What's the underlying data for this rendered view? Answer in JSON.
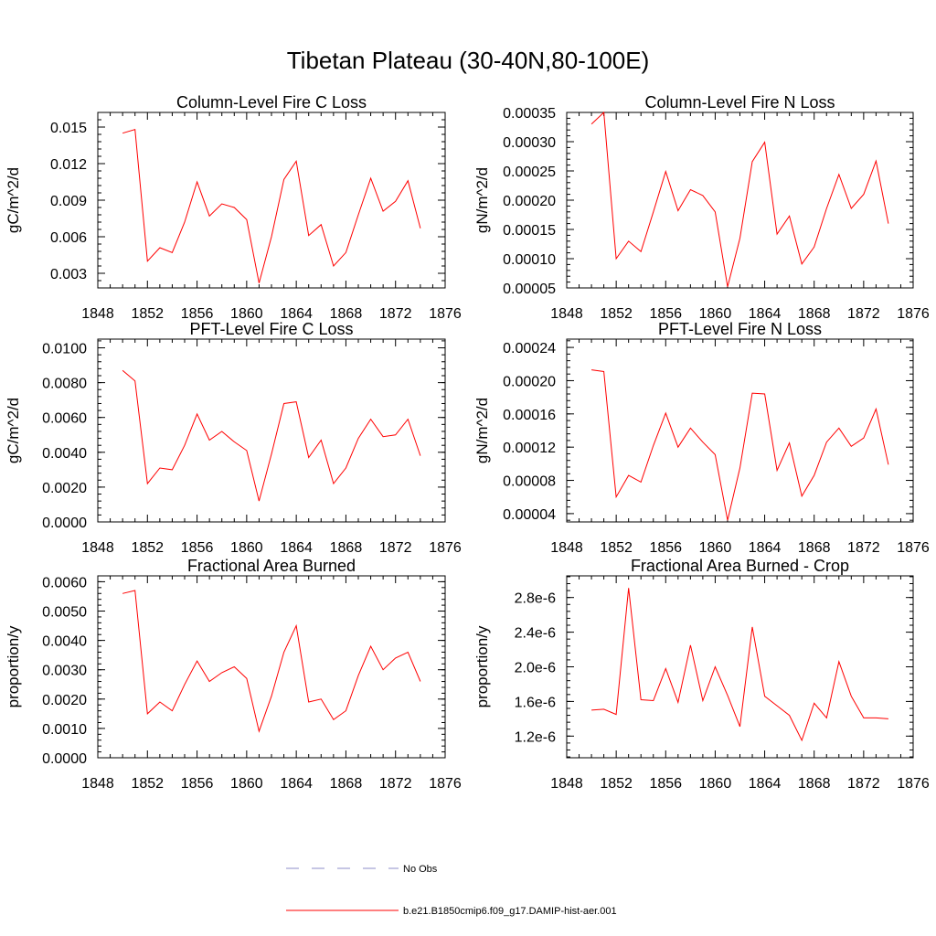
{
  "figure": {
    "title": "Tibetan Plateau (30-40N,80-100E)",
    "line_color": "#ff0000",
    "obs_color": "#8c8cc8"
  },
  "legend": {
    "obs_label": "No Obs",
    "model_label": "b.e21.B1850cmip6.f09_g17.DAMIP-hist-aer.001"
  },
  "chart_data": [
    {
      "type": "line",
      "title": "Column-Level Fire C Loss",
      "ylabel": "gC/m^2/d",
      "xlim": [
        1848,
        1876
      ],
      "xticks": [
        "1848",
        "1852",
        "1856",
        "1860",
        "1864",
        "1868",
        "1872",
        "1876"
      ],
      "ylim": [
        0.0018,
        0.0162
      ],
      "yticks": [
        "0.003",
        "0.006",
        "0.009",
        "0.012",
        "0.015"
      ],
      "x": [
        1850,
        1851,
        1852,
        1853,
        1854,
        1855,
        1856,
        1857,
        1858,
        1859,
        1860,
        1861,
        1862,
        1863,
        1864,
        1865,
        1866,
        1867,
        1868,
        1869,
        1870,
        1871,
        1872,
        1873,
        1874
      ],
      "series": [
        {
          "values": [
            0.0145,
            0.0148,
            0.004,
            0.0051,
            0.0047,
            0.0072,
            0.0105,
            0.0077,
            0.0087,
            0.0084,
            0.0074,
            0.0022,
            0.006,
            0.0107,
            0.0122,
            0.0061,
            0.007,
            0.0036,
            0.0047,
            0.0078,
            0.0108,
            0.0081,
            0.0089,
            0.0106,
            0.0067
          ]
        }
      ]
    },
    {
      "type": "line",
      "title": "Column-Level Fire N Loss",
      "ylabel": "gN/m^2/d",
      "xlim": [
        1848,
        1876
      ],
      "xticks": [
        "1848",
        "1852",
        "1856",
        "1860",
        "1864",
        "1868",
        "1872",
        "1876"
      ],
      "ylim": [
        5e-05,
        0.00035
      ],
      "yticks": [
        "0.00005",
        "0.00010",
        "0.00015",
        "0.00020",
        "0.00025",
        "0.00030",
        "0.00035"
      ],
      "x": [
        1850,
        1851,
        1852,
        1853,
        1854,
        1855,
        1856,
        1857,
        1858,
        1859,
        1860,
        1861,
        1862,
        1863,
        1864,
        1865,
        1866,
        1867,
        1868,
        1869,
        1870,
        1871,
        1872,
        1873,
        1874
      ],
      "series": [
        {
          "values": [
            0.00033,
            0.00035,
            0.0001,
            0.00013,
            0.000112,
            0.00018,
            0.000249,
            0.000182,
            0.000218,
            0.000208,
            0.00018,
            5.2e-05,
            0.000135,
            0.000266,
            0.000299,
            0.000142,
            0.000173,
            9.1e-05,
            0.00012,
            0.000186,
            0.000244,
            0.000186,
            0.00021,
            0.000267,
            0.00016
          ]
        }
      ]
    },
    {
      "type": "line",
      "title": "PFT-Level Fire C Loss",
      "ylabel": "gC/m^2/d",
      "xlim": [
        1848,
        1876
      ],
      "xticks": [
        "1848",
        "1852",
        "1856",
        "1860",
        "1864",
        "1868",
        "1872",
        "1876"
      ],
      "ylim": [
        0.0,
        0.0105
      ],
      "yticks": [
        "0.0000",
        "0.0020",
        "0.0040",
        "0.0060",
        "0.0080",
        "0.0100"
      ],
      "x": [
        1850,
        1851,
        1852,
        1853,
        1854,
        1855,
        1856,
        1857,
        1858,
        1859,
        1860,
        1861,
        1862,
        1863,
        1864,
        1865,
        1866,
        1867,
        1868,
        1869,
        1870,
        1871,
        1872,
        1873,
        1874
      ],
      "series": [
        {
          "values": [
            0.0087,
            0.0081,
            0.0022,
            0.0031,
            0.003,
            0.0044,
            0.0062,
            0.0047,
            0.0052,
            0.0046,
            0.0041,
            0.0012,
            0.0039,
            0.0068,
            0.0069,
            0.0037,
            0.0047,
            0.0022,
            0.0031,
            0.0048,
            0.0059,
            0.0049,
            0.005,
            0.0059,
            0.0038
          ]
        }
      ]
    },
    {
      "type": "line",
      "title": "PFT-Level Fire N Loss",
      "ylabel": "gN/m^2/d",
      "xlim": [
        1848,
        1876
      ],
      "xticks": [
        "1848",
        "1852",
        "1856",
        "1860",
        "1864",
        "1868",
        "1872",
        "1876"
      ],
      "ylim": [
        3e-05,
        0.00025
      ],
      "yticks": [
        "0.00004",
        "0.00008",
        "0.00012",
        "0.00016",
        "0.00020",
        "0.00024"
      ],
      "x": [
        1850,
        1851,
        1852,
        1853,
        1854,
        1855,
        1856,
        1857,
        1858,
        1859,
        1860,
        1861,
        1862,
        1863,
        1864,
        1865,
        1866,
        1867,
        1868,
        1869,
        1870,
        1871,
        1872,
        1873,
        1874
      ],
      "series": [
        {
          "values": [
            0.000213,
            0.000211,
            6e-05,
            8.6e-05,
            7.8e-05,
            0.000122,
            0.000161,
            0.00012,
            0.000143,
            0.000126,
            0.000111,
            3.2e-05,
            9.5e-05,
            0.000185,
            0.000184,
            9.2e-05,
            0.000125,
            6.1e-05,
            8.6e-05,
            0.000126,
            0.000143,
            0.000121,
            0.000131,
            0.000166,
            9.9e-05
          ]
        }
      ]
    },
    {
      "type": "line",
      "title": "Fractional Area Burned",
      "ylabel": "proportion/y",
      "xlim": [
        1848,
        1876
      ],
      "xticks": [
        "1848",
        "1852",
        "1856",
        "1860",
        "1864",
        "1868",
        "1872",
        "1876"
      ],
      "ylim": [
        0.0,
        0.0062
      ],
      "yticks": [
        "0.0000",
        "0.0010",
        "0.0020",
        "0.0030",
        "0.0040",
        "0.0050",
        "0.0060"
      ],
      "x": [
        1850,
        1851,
        1852,
        1853,
        1854,
        1855,
        1856,
        1857,
        1858,
        1859,
        1860,
        1861,
        1862,
        1863,
        1864,
        1865,
        1866,
        1867,
        1868,
        1869,
        1870,
        1871,
        1872,
        1873,
        1874
      ],
      "series": [
        {
          "values": [
            0.0056,
            0.0057,
            0.0015,
            0.0019,
            0.0016,
            0.0025,
            0.0033,
            0.0026,
            0.0029,
            0.0031,
            0.0027,
            0.0009,
            0.0021,
            0.0036,
            0.0045,
            0.0019,
            0.002,
            0.0013,
            0.0016,
            0.0028,
            0.0038,
            0.003,
            0.0034,
            0.0036,
            0.0026
          ]
        }
      ]
    },
    {
      "type": "line",
      "title": "Fractional Area Burned - Crop",
      "ylabel": "proportion/y",
      "xlim": [
        1848,
        1876
      ],
      "xticks": [
        "1848",
        "1852",
        "1856",
        "1860",
        "1864",
        "1868",
        "1872",
        "1876"
      ],
      "ylim": [
        9.5e-07,
        3.05e-06
      ],
      "yticks": [
        "1.2e-6",
        "1.6e-6",
        "2.0e-6",
        "2.4e-6",
        "2.8e-6"
      ],
      "x": [
        1850,
        1851,
        1852,
        1853,
        1854,
        1855,
        1856,
        1857,
        1858,
        1859,
        1860,
        1861,
        1862,
        1863,
        1864,
        1865,
        1866,
        1867,
        1868,
        1869,
        1870,
        1871,
        1872,
        1873,
        1874
      ],
      "series": [
        {
          "values": [
            1.5e-06,
            1.51e-06,
            1.45e-06,
            2.91e-06,
            1.62e-06,
            1.61e-06,
            1.98e-06,
            1.59e-06,
            2.25e-06,
            1.61e-06,
            2e-06,
            1.67e-06,
            1.31e-06,
            2.46e-06,
            1.66e-06,
            1.55e-06,
            1.44e-06,
            1.15e-06,
            1.58e-06,
            1.41e-06,
            2.06e-06,
            1.66e-06,
            1.41e-06,
            1.41e-06,
            1.4e-06
          ]
        }
      ]
    }
  ]
}
